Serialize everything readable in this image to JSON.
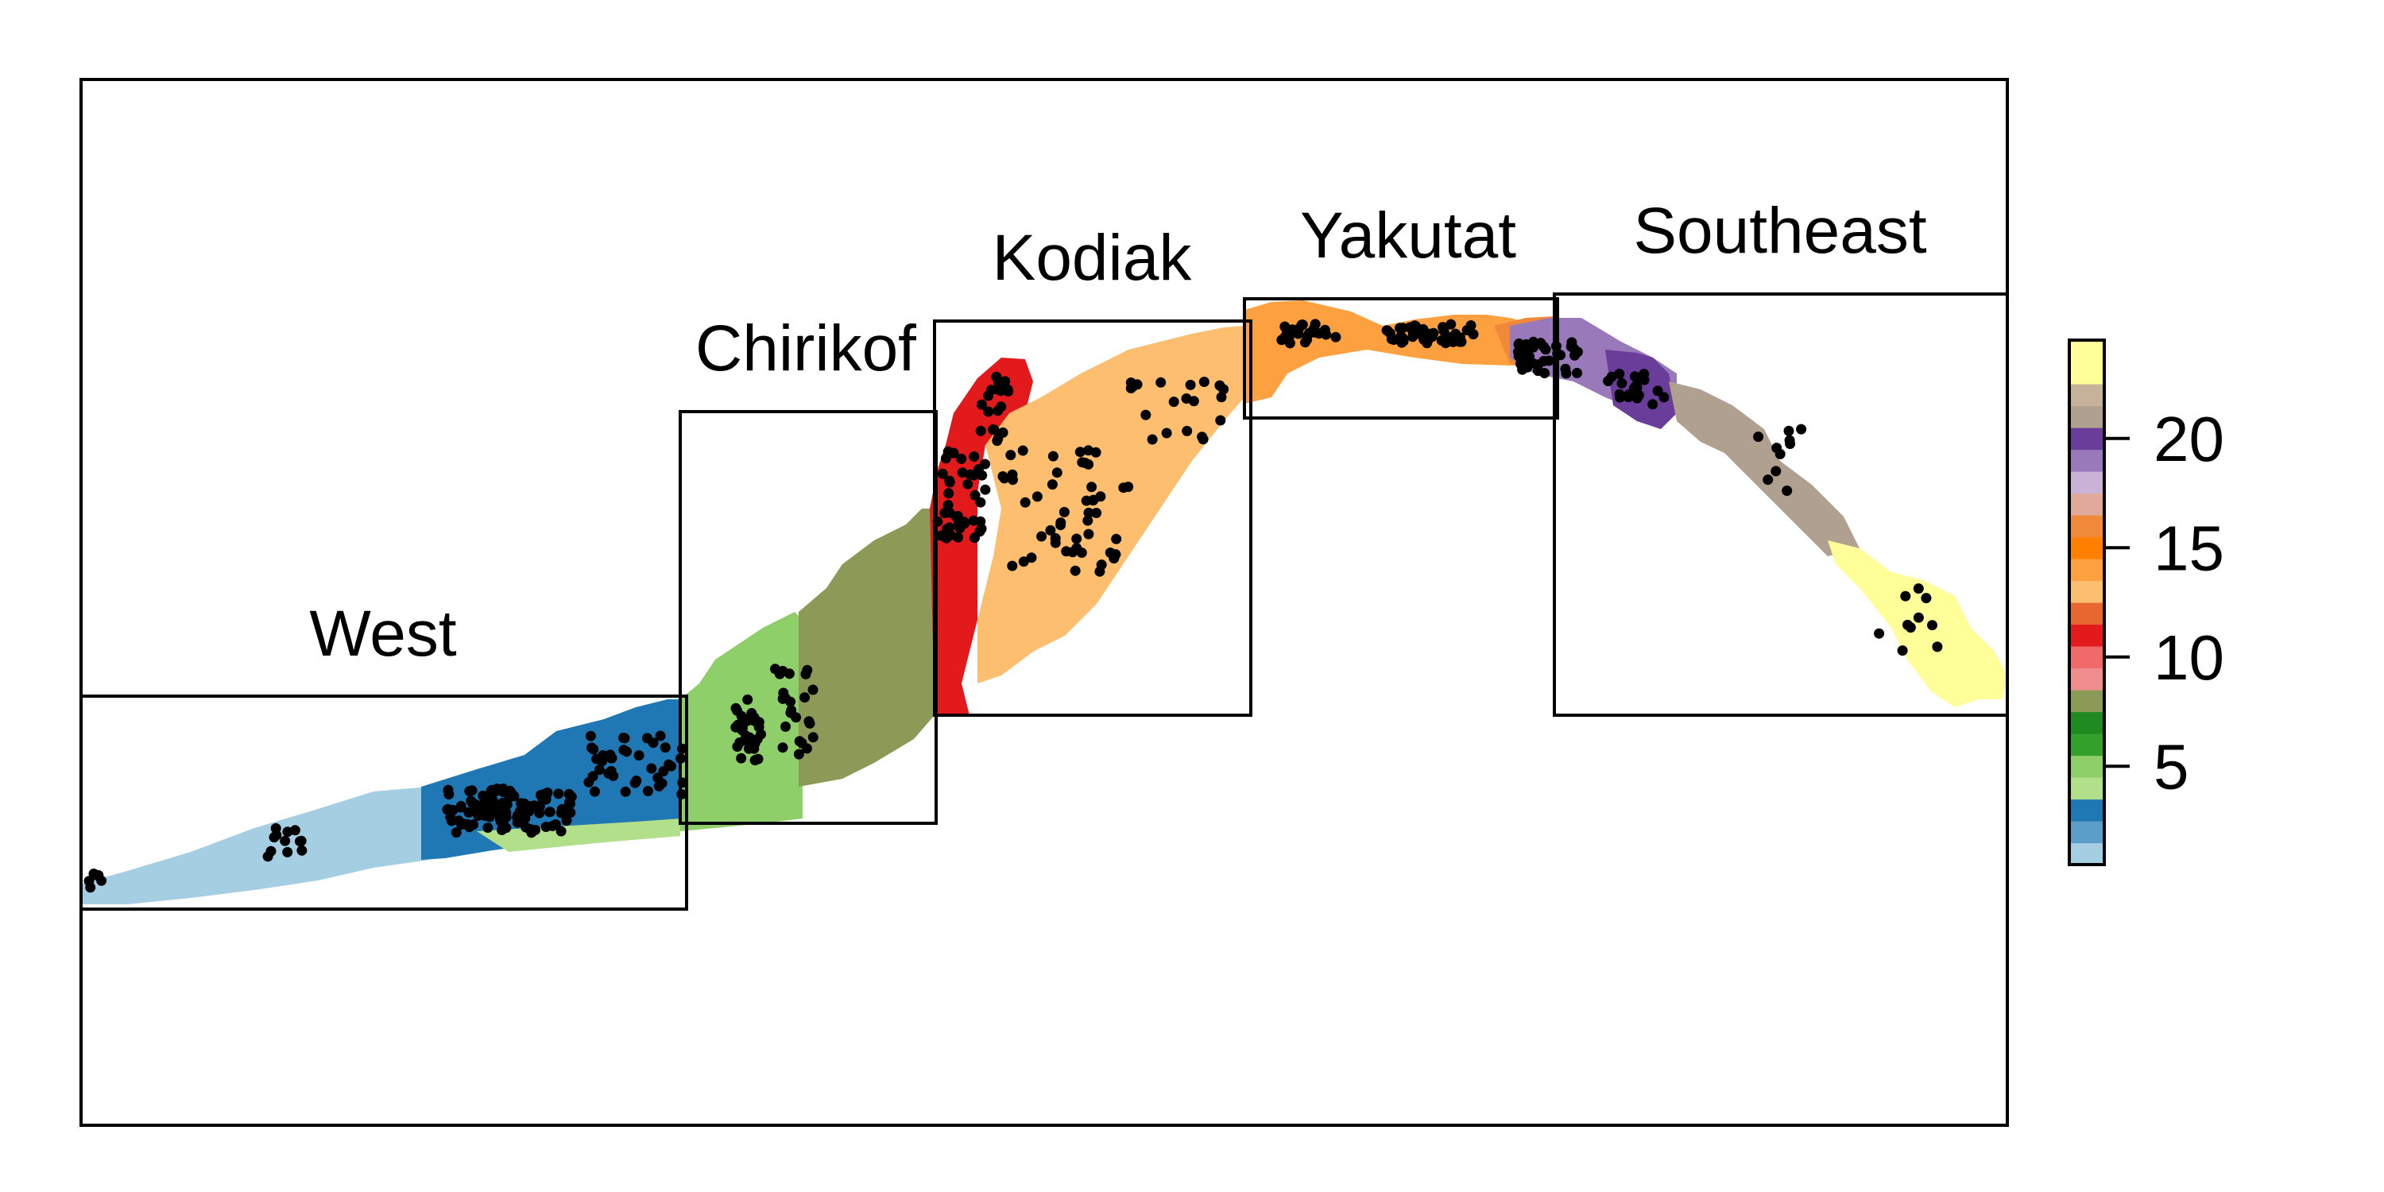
{
  "map": {
    "regions": [
      {
        "id": "west",
        "label": "West"
      },
      {
        "id": "chirikof",
        "label": "Chirikof"
      },
      {
        "id": "kodiak",
        "label": "Kodiak"
      },
      {
        "id": "yakutat",
        "label": "Yakutat"
      },
      {
        "id": "southeast",
        "label": "Southeast"
      }
    ],
    "point_color": "#000000"
  },
  "legend": {
    "tick_labels": [
      "5",
      "10",
      "15",
      "20"
    ],
    "tick_values": [
      5,
      10,
      15,
      20
    ],
    "range": [
      1,
      24
    ],
    "colors": [
      "#a6cee3",
      "#5b9ec9",
      "#1f78b4",
      "#b2df8a",
      "#8fcf6a",
      "#33a02c",
      "#1f8a1f",
      "#8c9a57",
      "#f08e8e",
      "#f06a6a",
      "#e31a1c",
      "#e8672e",
      "#fdbf6f",
      "#fca040",
      "#ff7f00",
      "#f08a3a",
      "#e0aa9a",
      "#cab2d6",
      "#9a79ba",
      "#6a3d9a",
      "#b0a090",
      "#c6b29a",
      "#ffff99",
      "#ffff99"
    ]
  }
}
